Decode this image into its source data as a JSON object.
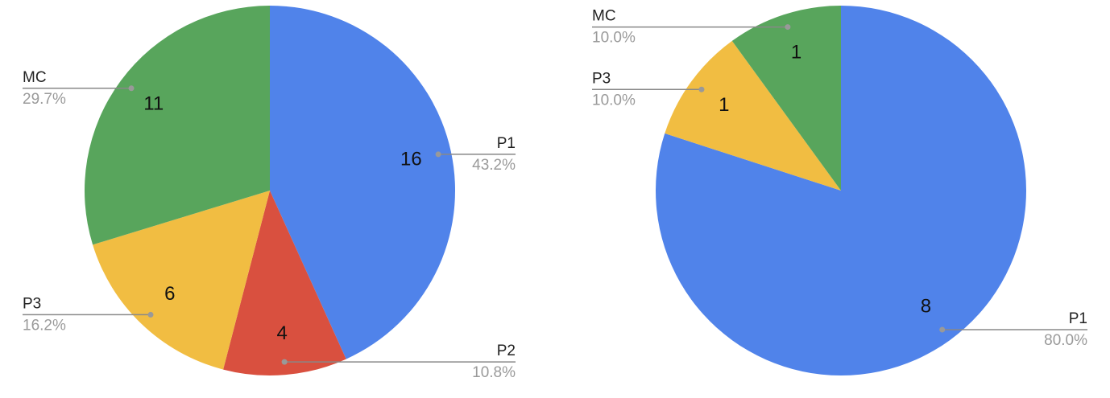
{
  "chart_data": [
    {
      "type": "pie",
      "categories": [
        "P1",
        "P2",
        "P3",
        "MC"
      ],
      "values": [
        16,
        4,
        6,
        11
      ],
      "percent_labels": [
        "43.2%",
        "10.8%",
        "16.2%",
        "29.7%"
      ],
      "colors": [
        "#5083ea",
        "#d9503f",
        "#f1bd42",
        "#58a55c"
      ]
    },
    {
      "type": "pie",
      "categories": [
        "P1",
        "P3",
        "MC"
      ],
      "values": [
        8,
        1,
        1
      ],
      "percent_labels": [
        "80.0%",
        "10.0%",
        "10.0%"
      ],
      "colors": [
        "#5083ea",
        "#f1bd42",
        "#58a55c"
      ]
    }
  ]
}
